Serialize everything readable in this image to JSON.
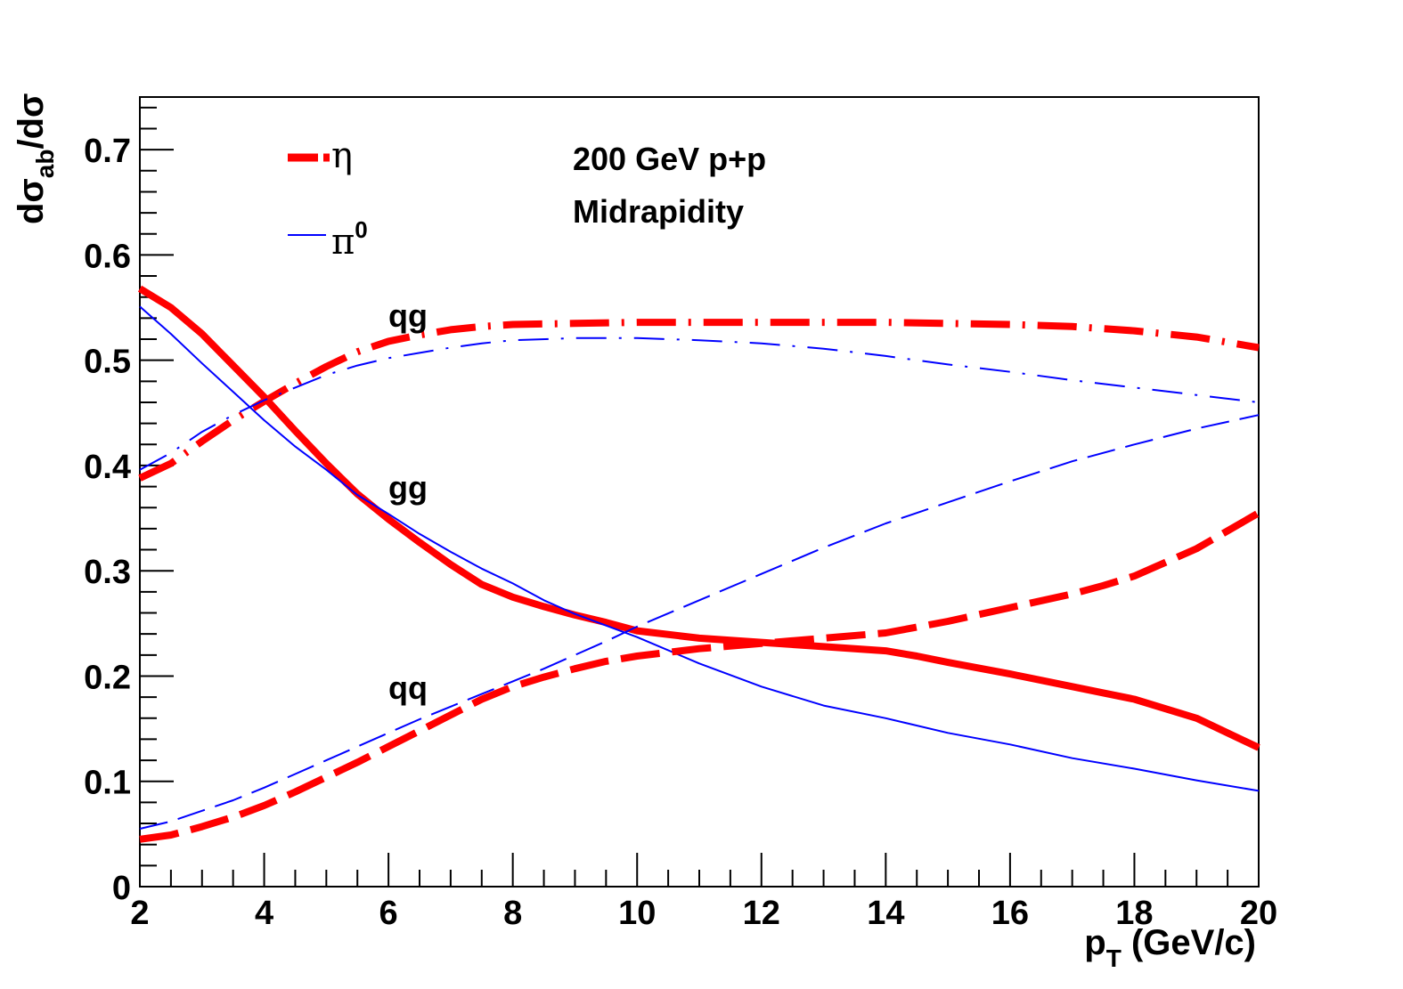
{
  "chart_data": {
    "type": "line",
    "xlabel": "p",
    "xlabel_sub": "T",
    "xlabel_unit": " (GeV/c)",
    "ylabel_parts": {
      "d1": "dσ",
      "sub": "ab",
      "rest": "/dσ"
    },
    "xlim": [
      2,
      20
    ],
    "ylim": [
      0,
      0.75
    ],
    "xticks": [
      2,
      4,
      6,
      8,
      10,
      12,
      14,
      16,
      18,
      20
    ],
    "xtick_labels": [
      "2",
      "4",
      "6",
      "8",
      "10",
      "12",
      "14",
      "16",
      "18",
      "20"
    ],
    "yticks": [
      0,
      0.1,
      0.2,
      0.3,
      0.4,
      0.5,
      0.6,
      0.7
    ],
    "ytick_labels": [
      "0",
      "0.1",
      "0.2",
      "0.3",
      "0.4",
      "0.5",
      "0.6",
      "0.7"
    ],
    "annotations": {
      "line1": "200 GeV p+p",
      "line2": "Midrapidity",
      "qg": "qg",
      "gg": "gg",
      "qq": "qq"
    },
    "legend": {
      "placement": "top-left",
      "entries": [
        {
          "label": "η",
          "sup": "",
          "color": "#ff0000",
          "style": "thick-dashed"
        },
        {
          "label": "π",
          "sup": "0",
          "color": "#0000ff",
          "style": "thin-solid"
        }
      ]
    },
    "series": [
      {
        "id": "eta-gg",
        "channel": "gg",
        "particle": "eta",
        "color": "#ff0000",
        "style": "solid",
        "x": [
          2,
          2.5,
          3,
          3.5,
          4,
          4.5,
          5,
          5.5,
          6,
          6.5,
          7,
          7.5,
          8,
          8.5,
          9,
          9.5,
          10,
          11,
          12,
          13,
          14,
          14.5,
          15,
          16,
          17,
          17.5,
          18,
          19,
          20
        ],
        "y": [
          0.568,
          0.55,
          0.525,
          0.495,
          0.465,
          0.433,
          0.402,
          0.373,
          0.349,
          0.327,
          0.306,
          0.287,
          0.275,
          0.266,
          0.258,
          0.251,
          0.243,
          0.236,
          0.232,
          0.228,
          0.224,
          0.219,
          0.213,
          0.202,
          0.19,
          0.184,
          0.178,
          0.16,
          0.132
        ]
      },
      {
        "id": "pi0-gg",
        "channel": "gg",
        "particle": "pi0",
        "color": "#0000ff",
        "style": "solid",
        "x": [
          2,
          2.5,
          3,
          3.5,
          4,
          4.5,
          5,
          5.5,
          6,
          6.5,
          7,
          7.5,
          8,
          8.5,
          9,
          9.5,
          10,
          11,
          12,
          13,
          14,
          15,
          16,
          17,
          18,
          19,
          20
        ],
        "y": [
          0.551,
          0.525,
          0.497,
          0.47,
          0.443,
          0.418,
          0.396,
          0.372,
          0.354,
          0.335,
          0.318,
          0.302,
          0.288,
          0.272,
          0.259,
          0.248,
          0.237,
          0.212,
          0.19,
          0.172,
          0.16,
          0.146,
          0.135,
          0.122,
          0.112,
          0.101,
          0.091
        ]
      },
      {
        "id": "eta-qg",
        "channel": "qg",
        "particle": "eta",
        "color": "#ff0000",
        "style": "dashdot",
        "x": [
          2,
          2.5,
          3,
          3.5,
          4,
          4.5,
          5,
          5.5,
          6,
          6.5,
          7,
          7.5,
          8,
          9,
          10,
          11,
          12,
          13,
          14,
          15,
          16,
          17,
          18,
          19,
          20
        ],
        "y": [
          0.388,
          0.402,
          0.423,
          0.443,
          0.461,
          0.478,
          0.494,
          0.508,
          0.518,
          0.524,
          0.529,
          0.532,
          0.534,
          0.535,
          0.536,
          0.536,
          0.536,
          0.536,
          0.536,
          0.535,
          0.534,
          0.532,
          0.528,
          0.522,
          0.512
        ]
      },
      {
        "id": "pi0-qg",
        "channel": "qg",
        "particle": "pi0",
        "color": "#0000ff",
        "style": "dashdot",
        "x": [
          2,
          2.5,
          3,
          3.5,
          4,
          4.5,
          5,
          5.5,
          6,
          6.5,
          7,
          7.5,
          8,
          9,
          10,
          11,
          12,
          13,
          14,
          15,
          16,
          17,
          18,
          19,
          20
        ],
        "y": [
          0.396,
          0.412,
          0.432,
          0.448,
          0.462,
          0.474,
          0.486,
          0.495,
          0.502,
          0.507,
          0.512,
          0.516,
          0.519,
          0.521,
          0.521,
          0.519,
          0.516,
          0.511,
          0.504,
          0.496,
          0.489,
          0.481,
          0.474,
          0.467,
          0.46
        ]
      },
      {
        "id": "eta-qq",
        "channel": "qq",
        "particle": "eta",
        "color": "#ff0000",
        "style": "dashed",
        "x": [
          2,
          2.5,
          3,
          3.5,
          4,
          4.5,
          5,
          5.5,
          6,
          6.5,
          7,
          7.5,
          8,
          8.5,
          9,
          9.5,
          10,
          11,
          12,
          13,
          14,
          15,
          16,
          17,
          17.5,
          18,
          19,
          20
        ],
        "y": [
          0.045,
          0.049,
          0.057,
          0.066,
          0.077,
          0.09,
          0.104,
          0.118,
          0.133,
          0.148,
          0.163,
          0.178,
          0.19,
          0.199,
          0.207,
          0.214,
          0.219,
          0.226,
          0.231,
          0.236,
          0.241,
          0.252,
          0.265,
          0.278,
          0.286,
          0.295,
          0.321,
          0.355
        ]
      },
      {
        "id": "pi0-qq",
        "channel": "qq",
        "particle": "pi0",
        "color": "#0000ff",
        "style": "dashed",
        "x": [
          2,
          2.5,
          3,
          3.5,
          4,
          4.5,
          5,
          5.5,
          6,
          6.5,
          7,
          7.5,
          8,
          8.5,
          9,
          9.5,
          10,
          11,
          12,
          13,
          14,
          15,
          16,
          17,
          18,
          19,
          20
        ],
        "y": [
          0.055,
          0.062,
          0.072,
          0.082,
          0.094,
          0.107,
          0.12,
          0.133,
          0.146,
          0.159,
          0.171,
          0.183,
          0.195,
          0.207,
          0.22,
          0.233,
          0.247,
          0.272,
          0.297,
          0.322,
          0.345,
          0.365,
          0.385,
          0.404,
          0.42,
          0.435,
          0.448
        ]
      }
    ]
  }
}
